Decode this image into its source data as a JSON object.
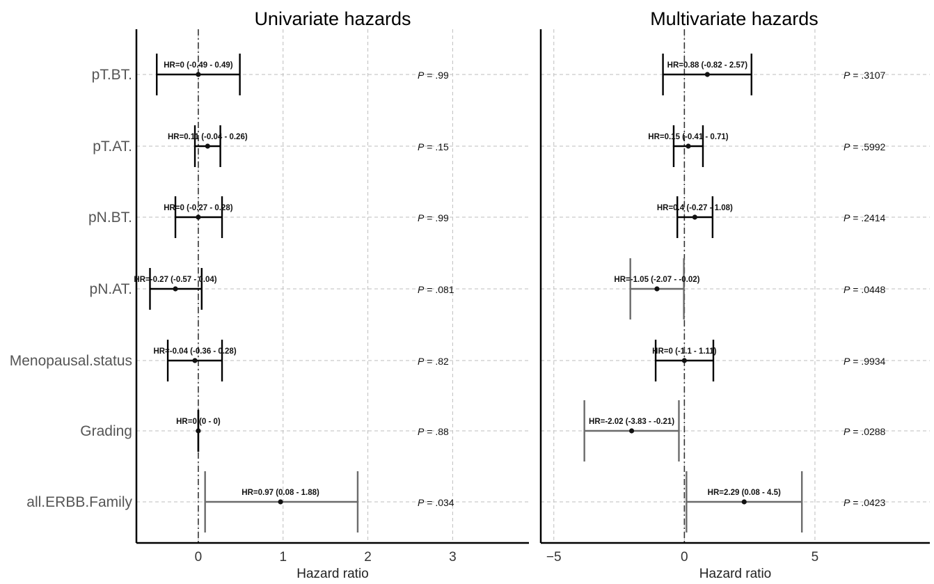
{
  "chart_data": [
    {
      "type": "forest",
      "title": "Univariate hazards",
      "xlabel": "Hazard ratio",
      "categories": [
        "pT.BT.",
        "pT.AT.",
        "pN.BT.",
        "pN.AT.",
        "Menopausal.status",
        "Grading",
        "all.ERBB.Family"
      ],
      "xlim": [
        -0.73,
        3.9
      ],
      "xticks": [
        0,
        1,
        2,
        3
      ],
      "grid": true,
      "rows": [
        {
          "category": "pT.BT.",
          "hr": 0,
          "lo": -0.49,
          "hi": 0.49,
          "label": "HR=0 (-0.49 - 0.49)",
          "p": ".99",
          "significant": false
        },
        {
          "category": "pT.AT.",
          "hr": 0.11,
          "lo": -0.04,
          "hi": 0.26,
          "label": "HR=0.11 (-0.04 - 0.26)",
          "p": ".15",
          "significant": false
        },
        {
          "category": "pN.BT.",
          "hr": 0,
          "lo": -0.27,
          "hi": 0.28,
          "label": "HR=0 (-0.27 - 0.28)",
          "p": ".99",
          "significant": false
        },
        {
          "category": "pN.AT.",
          "hr": -0.27,
          "lo": -0.57,
          "hi": 0.04,
          "label": "HR=-0.27 (-0.57 - 0.04)",
          "p": ".081",
          "significant": false
        },
        {
          "category": "Menopausal.status",
          "hr": -0.04,
          "lo": -0.36,
          "hi": 0.28,
          "label": "HR=-0.04 (-0.36 - 0.28)",
          "p": ".82",
          "significant": false
        },
        {
          "category": "Grading",
          "hr": 0,
          "lo": 0,
          "hi": 0,
          "label": "HR=0 (0 - 0)",
          "p": ".88",
          "significant": false
        },
        {
          "category": "all.ERBB.Family",
          "hr": 0.97,
          "lo": 0.08,
          "hi": 1.88,
          "label": "HR=0.97 (0.08 - 1.88)",
          "p": ".034",
          "significant": true
        }
      ]
    },
    {
      "type": "forest",
      "title": "Multivariate hazards",
      "xlabel": "Hazard ratio",
      "categories": [
        "pT.BT.",
        "pT.AT.",
        "pN.BT.",
        "pN.AT.",
        "Menopausal.status",
        "Grading",
        "all.ERBB.Family"
      ],
      "xlim": [
        -5.5,
        9.4
      ],
      "xticks": [
        -5,
        0,
        5
      ],
      "grid": true,
      "rows": [
        {
          "category": "pT.BT.",
          "hr": 0.88,
          "lo": -0.82,
          "hi": 2.57,
          "label": "HR=0.88 (-0.82 - 2.57)",
          "p": ".3107",
          "significant": false
        },
        {
          "category": "pT.AT.",
          "hr": 0.15,
          "lo": -0.41,
          "hi": 0.71,
          "label": "HR=0.15 (-0.41 - 0.71)",
          "p": ".5992",
          "significant": false
        },
        {
          "category": "pN.BT.",
          "hr": 0.4,
          "lo": -0.27,
          "hi": 1.08,
          "label": "HR=0.4 (-0.27 - 1.08)",
          "p": ".2414",
          "significant": false
        },
        {
          "category": "pN.AT.",
          "hr": -1.05,
          "lo": -2.07,
          "hi": -0.02,
          "label": "HR=-1.05 (-2.07 - -0.02)",
          "p": ".0448",
          "significant": true
        },
        {
          "category": "Menopausal.status",
          "hr": 0,
          "lo": -1.1,
          "hi": 1.11,
          "label": "HR=0 (-1.1 - 1.11)",
          "p": ".9934",
          "significant": false
        },
        {
          "category": "Grading",
          "hr": -2.02,
          "lo": -3.83,
          "hi": -0.21,
          "label": "HR=-2.02 (-3.83 - -0.21)",
          "p": ".0288",
          "significant": true
        },
        {
          "category": "all.ERBB.Family",
          "hr": 2.29,
          "lo": 0.08,
          "hi": 4.5,
          "label": "HR=2.29 (0.08 - 4.5)",
          "p": ".0423",
          "significant": true
        }
      ]
    }
  ],
  "p_prefix": "P",
  "p_equals": " = ",
  "colors": {
    "significant": "#6b6b6b",
    "nonsignificant": "#000000",
    "grid": "#bdbdbd",
    "axis": "#000000",
    "text": "#333333"
  }
}
